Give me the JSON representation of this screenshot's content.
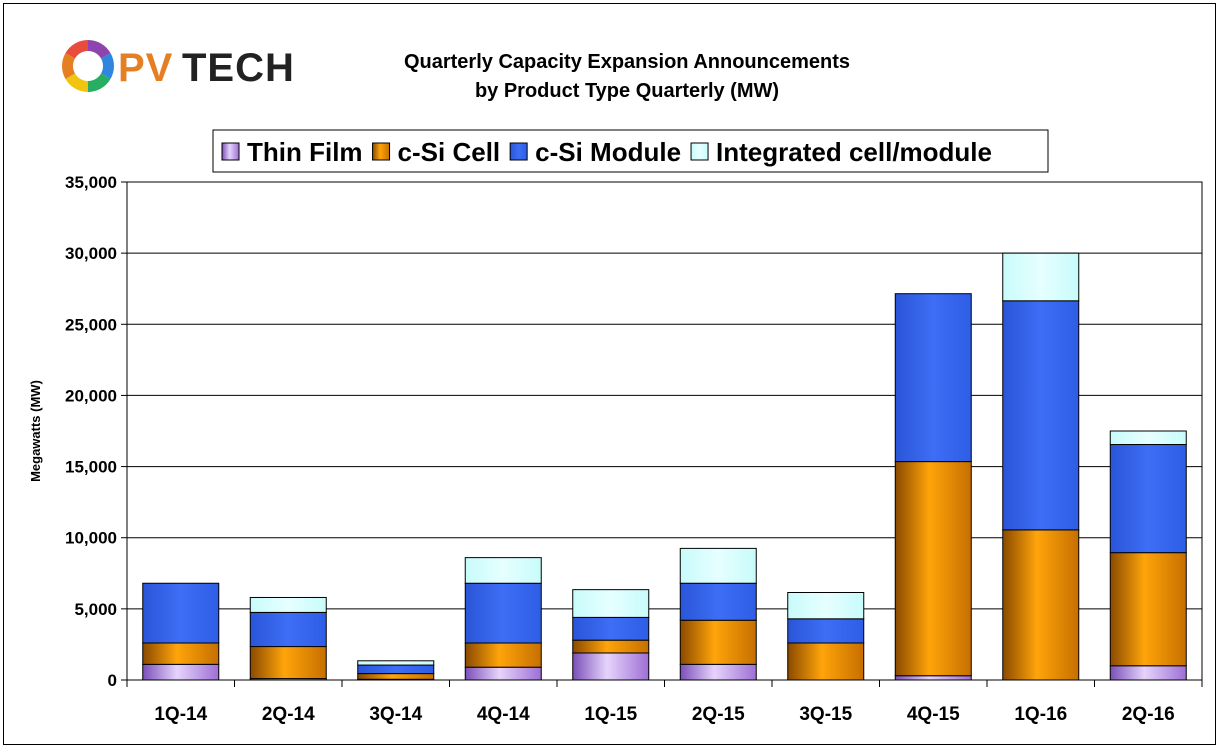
{
  "logo": {
    "text_pv": "PV",
    "text_tech": "TECH",
    "colors": [
      "#8e44ad",
      "#2e86de",
      "#27ae60",
      "#f1c40f",
      "#e67e22",
      "#e74c3c"
    ]
  },
  "chart_data": {
    "type": "bar",
    "stacked": true,
    "title_line1": "Quarterly Capacity Expansion Announcements",
    "title_line2": "by Product Type Quarterly (MW)",
    "xlabel": "",
    "ylabel": "Megawatts (MW)",
    "ylim": [
      0,
      35000
    ],
    "yticks": [
      0,
      5000,
      10000,
      15000,
      20000,
      25000,
      30000,
      35000
    ],
    "ytick_labels": [
      "0",
      "5,000",
      "10,000",
      "15,000",
      "20,000",
      "25,000",
      "30,000",
      "35,000"
    ],
    "grid": "horizontal",
    "legend_position": "top",
    "categories": [
      "1Q-14",
      "2Q-14",
      "3Q-14",
      "4Q-14",
      "1Q-15",
      "2Q-15",
      "3Q-15",
      "4Q-15",
      "1Q-16",
      "2Q-16"
    ],
    "series": [
      {
        "name": "Thin Film",
        "color": "#b38de0",
        "values": [
          1100,
          100,
          50,
          900,
          1900,
          1100,
          0,
          300,
          0,
          1000
        ]
      },
      {
        "name": "c-Si Cell",
        "color": "#f39200",
        "values": [
          1500,
          2250,
          400,
          1700,
          900,
          3100,
          2600,
          15050,
          10550,
          7950
        ]
      },
      {
        "name": "c-Si Module",
        "color": "#3366ee",
        "values": [
          4200,
          2400,
          600,
          4200,
          1600,
          2600,
          1700,
          11800,
          16100,
          7600
        ]
      },
      {
        "name": "Integrated cell/module",
        "color": "#ccffff",
        "values": [
          0,
          1050,
          300,
          1800,
          1950,
          2450,
          1850,
          0,
          3350,
          950
        ]
      }
    ]
  }
}
